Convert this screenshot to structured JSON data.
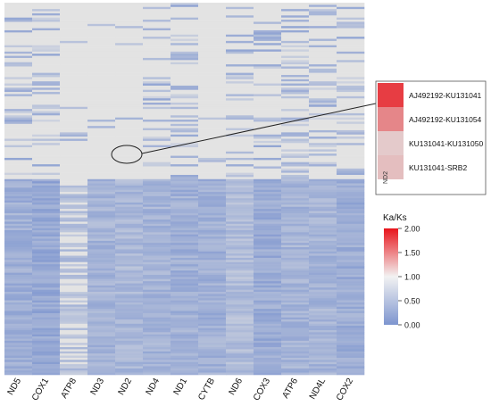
{
  "chart_data": {
    "type": "heatmap",
    "title": "",
    "xlabel": "",
    "ylabel": "",
    "columns": [
      "ND5",
      "COX1",
      "ATP8",
      "ND3",
      "ND2",
      "ND4",
      "ND1",
      "CYTB",
      "ND6",
      "COX3",
      "ATP6",
      "ND4L",
      "COX2"
    ],
    "row_count": 175,
    "value_range": [
      0.0,
      2.0
    ],
    "colorscale": [
      {
        "value": 0.0,
        "color": "#7d95cf"
      },
      {
        "value": 1.0,
        "color": "#e3e3e3"
      },
      {
        "value": 2.0,
        "color": "#e8141b"
      }
    ],
    "no_data_color": "#e3e3e3",
    "summary_by_column": [
      {
        "gene": "ND5",
        "first_row_below_1": 83,
        "typical_low_value": 0.35
      },
      {
        "gene": "COX1",
        "first_row_below_1": 83,
        "typical_low_value": 0.25
      },
      {
        "gene": "ATP8",
        "first_row_below_1": 86,
        "typical_low_value": 0.55
      },
      {
        "gene": "ND3",
        "first_row_below_1": 83,
        "typical_low_value": 0.4
      },
      {
        "gene": "ND2",
        "first_row_below_1": 83,
        "typical_low_value": 0.45
      },
      {
        "gene": "ND4",
        "first_row_below_1": 83,
        "typical_low_value": 0.4
      },
      {
        "gene": "ND1",
        "first_row_below_1": 83,
        "typical_low_value": 0.35
      },
      {
        "gene": "CYTB",
        "first_row_below_1": 83,
        "typical_low_value": 0.35
      },
      {
        "gene": "ND6",
        "first_row_below_1": 83,
        "typical_low_value": 0.5
      },
      {
        "gene": "COX3",
        "first_row_below_1": 83,
        "typical_low_value": 0.3
      },
      {
        "gene": "ATP6",
        "first_row_below_1": 83,
        "typical_low_value": 0.4
      },
      {
        "gene": "ND4L",
        "first_row_below_1": 83,
        "typical_low_value": 0.4
      },
      {
        "gene": "COX2",
        "first_row_below_1": 83,
        "typical_low_value": 0.3
      }
    ],
    "legend": {
      "title": "Ka/Ks",
      "ticks": [
        "0.00",
        "0.50",
        "1.00",
        "1.50",
        "2.00"
      ],
      "tick_values": [
        0.0,
        0.5,
        1.0,
        1.5,
        2.0
      ],
      "placement": "right"
    },
    "inset": {
      "column": "ND2",
      "rows": [
        {
          "pair": "AJ492192-KU131041",
          "value": 1.8
        },
        {
          "pair": "AJ492192-KU131054",
          "value": 1.45
        },
        {
          "pair": "KU131041-KU131050",
          "value": 1.12
        },
        {
          "pair": "KU131041-SRB2",
          "value": 1.18
        }
      ]
    }
  }
}
